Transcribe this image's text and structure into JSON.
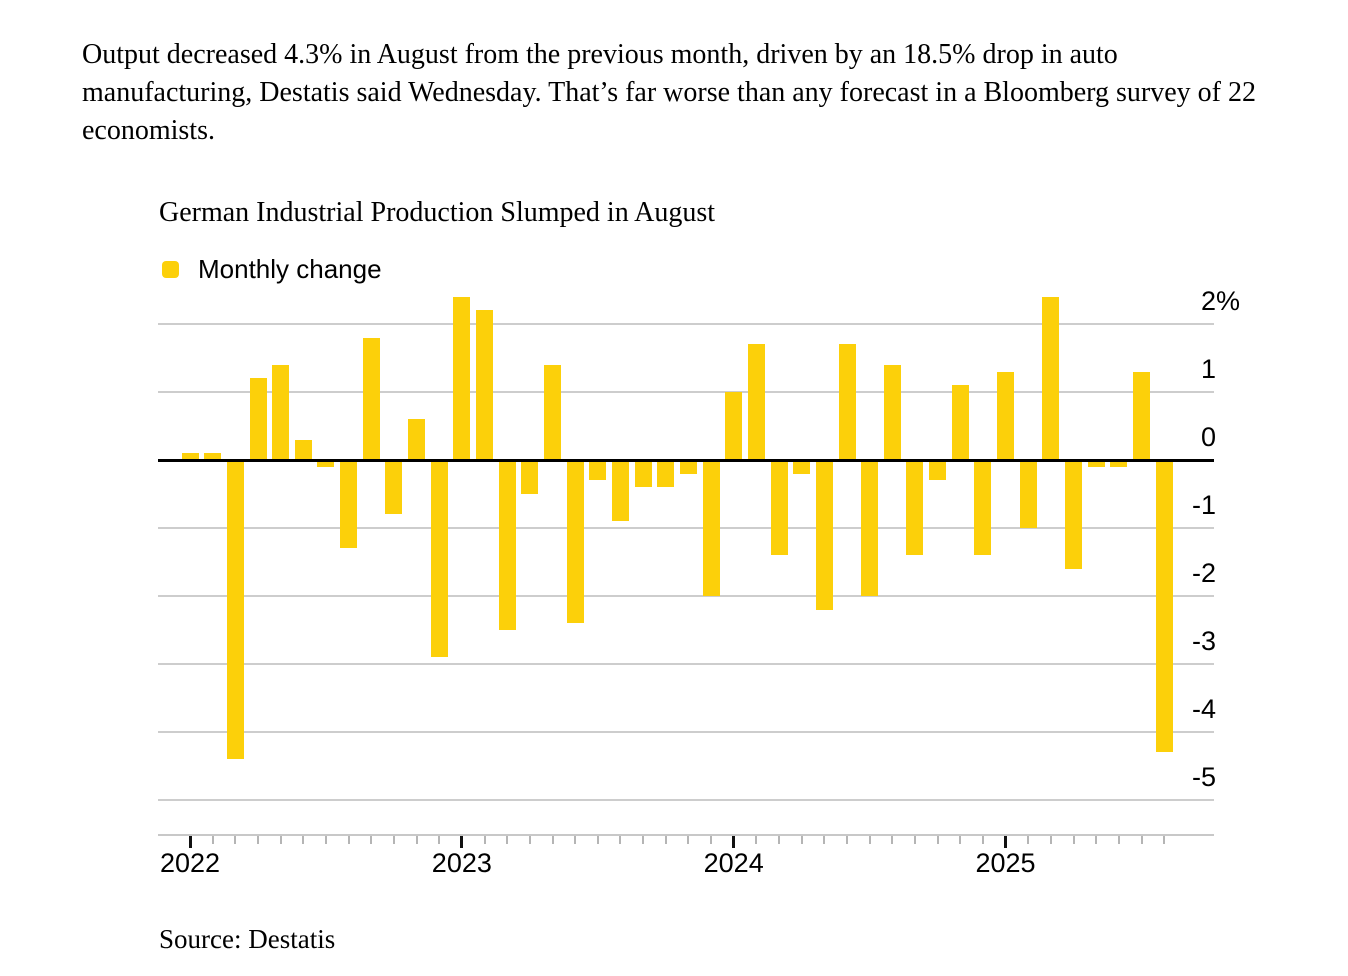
{
  "article": {
    "paragraph": "Output decreased 4.3% in August from the previous month, driven by an 18.5% drop in auto manufacturing, Destatis said Wednesday. That’s far worse than any forecast in a Bloomberg survey of 22 economists."
  },
  "chart_data": {
    "type": "bar",
    "title": "German Industrial Production Slumped in August",
    "legend": [
      "Monthly change"
    ],
    "legend_position": "top-left",
    "source": "Source: Destatis",
    "categories": [
      "Jan 2022",
      "Feb 2022",
      "Mar 2022",
      "Apr 2022",
      "May 2022",
      "Jun 2022",
      "Jul 2022",
      "Aug 2022",
      "Sep 2022",
      "Oct 2022",
      "Nov 2022",
      "Dec 2022",
      "Jan 2023",
      "Feb 2023",
      "Mar 2023",
      "Apr 2023",
      "May 2023",
      "Jun 2023",
      "Jul 2023",
      "Aug 2023",
      "Sep 2023",
      "Oct 2023",
      "Nov 2023",
      "Dec 2023",
      "Jan 2024",
      "Feb 2024",
      "Mar 2024",
      "Apr 2024",
      "May 2024",
      "Jun 2024",
      "Jul 2024",
      "Aug 2024",
      "Sep 2024",
      "Oct 2024",
      "Nov 2024",
      "Dec 2024",
      "Jan 2025",
      "Feb 2025",
      "Mar 2025",
      "Apr 2025",
      "May 2025",
      "Jun 2025",
      "Jul 2025",
      "Aug 2025"
    ],
    "series": [
      {
        "name": "Monthly change",
        "values": [
          0.1,
          0.1,
          -4.4,
          1.2,
          1.4,
          0.3,
          -0.1,
          -1.3,
          1.8,
          -0.8,
          0.6,
          -2.9,
          2.4,
          2.2,
          -2.5,
          -0.5,
          1.4,
          -2.4,
          -0.3,
          -0.9,
          -0.4,
          -0.4,
          -0.2,
          -2.0,
          1.0,
          1.7,
          -1.4,
          -0.2,
          -2.2,
          1.7,
          -2.0,
          1.4,
          -1.4,
          -0.3,
          1.1,
          -1.4,
          1.3,
          -1.0,
          2.4,
          -1.6,
          -0.1,
          -0.1,
          1.3,
          -4.3
        ]
      }
    ],
    "y_axis": {
      "tick_values": [
        2,
        1,
        0,
        -1,
        -2,
        -3,
        -4,
        -5
      ],
      "tick_labels": [
        "2",
        "1",
        "0",
        "-1",
        "-2",
        "-3",
        "-4",
        "-5"
      ],
      "unit_label": "%",
      "range": [
        -5.4,
        2.55
      ],
      "grid": true
    },
    "x_axis": {
      "year_labels": [
        {
          "text": "2022",
          "month_index": 0
        },
        {
          "text": "2023",
          "month_index": 12
        },
        {
          "text": "2024",
          "month_index": 24
        },
        {
          "text": "2025",
          "month_index": 36
        }
      ]
    },
    "colors": {
      "bar": "#FCD00A",
      "gridline": "#CDCDCD",
      "zero_line": "#000000",
      "axis_line": "#C8C8C8",
      "minor_tick": "#B5B5B5",
      "year_tick": "#111111",
      "text": "#000000"
    }
  }
}
